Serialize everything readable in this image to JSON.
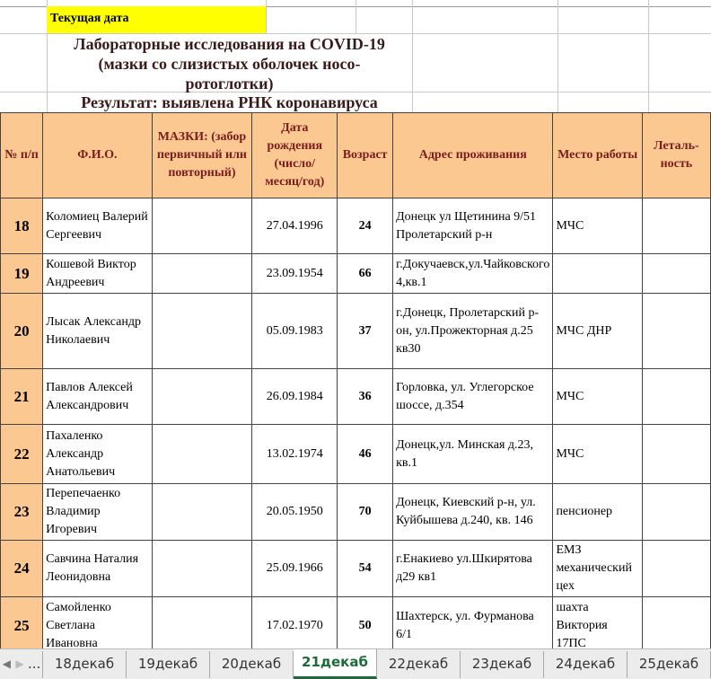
{
  "header_block": {
    "current_date_label": "Текущая дата",
    "title_lines": [
      "Лабораторные исследования на COVID-19",
      "(мазки со слизистых оболочек носо-",
      "ротоглотки)"
    ],
    "result": "Результат:  выявлена  РНК коронавируса"
  },
  "table": {
    "columns": [
      "№ п/п",
      "Ф.И.О.",
      "МАЗКИ: (забор первичный или повторный)",
      "Дата рождения (число/ месяц/год)",
      "Возраст",
      "Адрес проживания",
      "Место работы",
      "Леталь-ность"
    ],
    "rows": [
      {
        "n": "18",
        "name": "Коломиец Валерий Сергеевич",
        "swab": "",
        "dob": "27.04.1996",
        "age": "24",
        "address": "Донецк ул Щетинина 9/51 Пролетарский р-н",
        "work": "МЧС",
        "lethal": ""
      },
      {
        "n": "19",
        "name": "Кошевой Виктор Андреевич",
        "swab": "",
        "dob": "23.09.1954",
        "age": "66",
        "address": "г.Докучаевск,ул.Чайковского 4,кв.1",
        "work": "",
        "lethal": ""
      },
      {
        "n": "20",
        "name": "Лысак Александр Николаевич",
        "swab": "",
        "dob": "05.09.1983",
        "age": "37",
        "address": "г.Донецк, Пролетарский р-он, ул.Прожекторная д.25 кв30",
        "work": "МЧС ДНР",
        "lethal": ""
      },
      {
        "n": "21",
        "name": "Павлов Алексей Александрович",
        "swab": "",
        "dob": "26.09.1984",
        "age": "36",
        "address": "Горловка, ул. Углегорское шоссе, д.354",
        "work": "МЧС",
        "lethal": ""
      },
      {
        "n": "22",
        "name": "Пахаленко Александр Анатольевич",
        "swab": "",
        "dob": "13.02.1974",
        "age": "46",
        "address": "Донецк,ул. Минская д.23, кв.1",
        "work": "МЧС",
        "lethal": ""
      },
      {
        "n": "23",
        "name": "Перепечаенко Владимир Игоревич",
        "swab": "",
        "dob": "20.05.1950",
        "age": "70",
        "address": "Донецк, Киевский р-н, ул. Куйбышева д.240, кв. 146",
        "work": "пенсионер",
        "lethal": ""
      },
      {
        "n": "24",
        "name": "Савчина Наталия Леонидовна",
        "swab": "",
        "dob": "25.09.1966",
        "age": "54",
        "address": "г.Енакиево ул.Шкирятова д29 кв1",
        "work": "ЕМЗ механический цех",
        "lethal": ""
      },
      {
        "n": "25",
        "name": "Самойленко Светлана Ивановна",
        "swab": "",
        "dob": "17.02.1970",
        "age": "50",
        "address": "Шахтерск, ул. Фурманова 6/1",
        "work": "шахта Виктория 17ПС",
        "lethal": ""
      }
    ]
  },
  "tabs": {
    "more": "...",
    "items": [
      "18декаб",
      "19декаб",
      "20декаб",
      "21декаб",
      "22декаб",
      "23декаб",
      "24декаб",
      "25декаб"
    ],
    "active": "21декаб"
  },
  "colors": {
    "header_fill": "#fbc892",
    "highlight": "#ffff00",
    "active_tab": "#1e6b3a"
  }
}
